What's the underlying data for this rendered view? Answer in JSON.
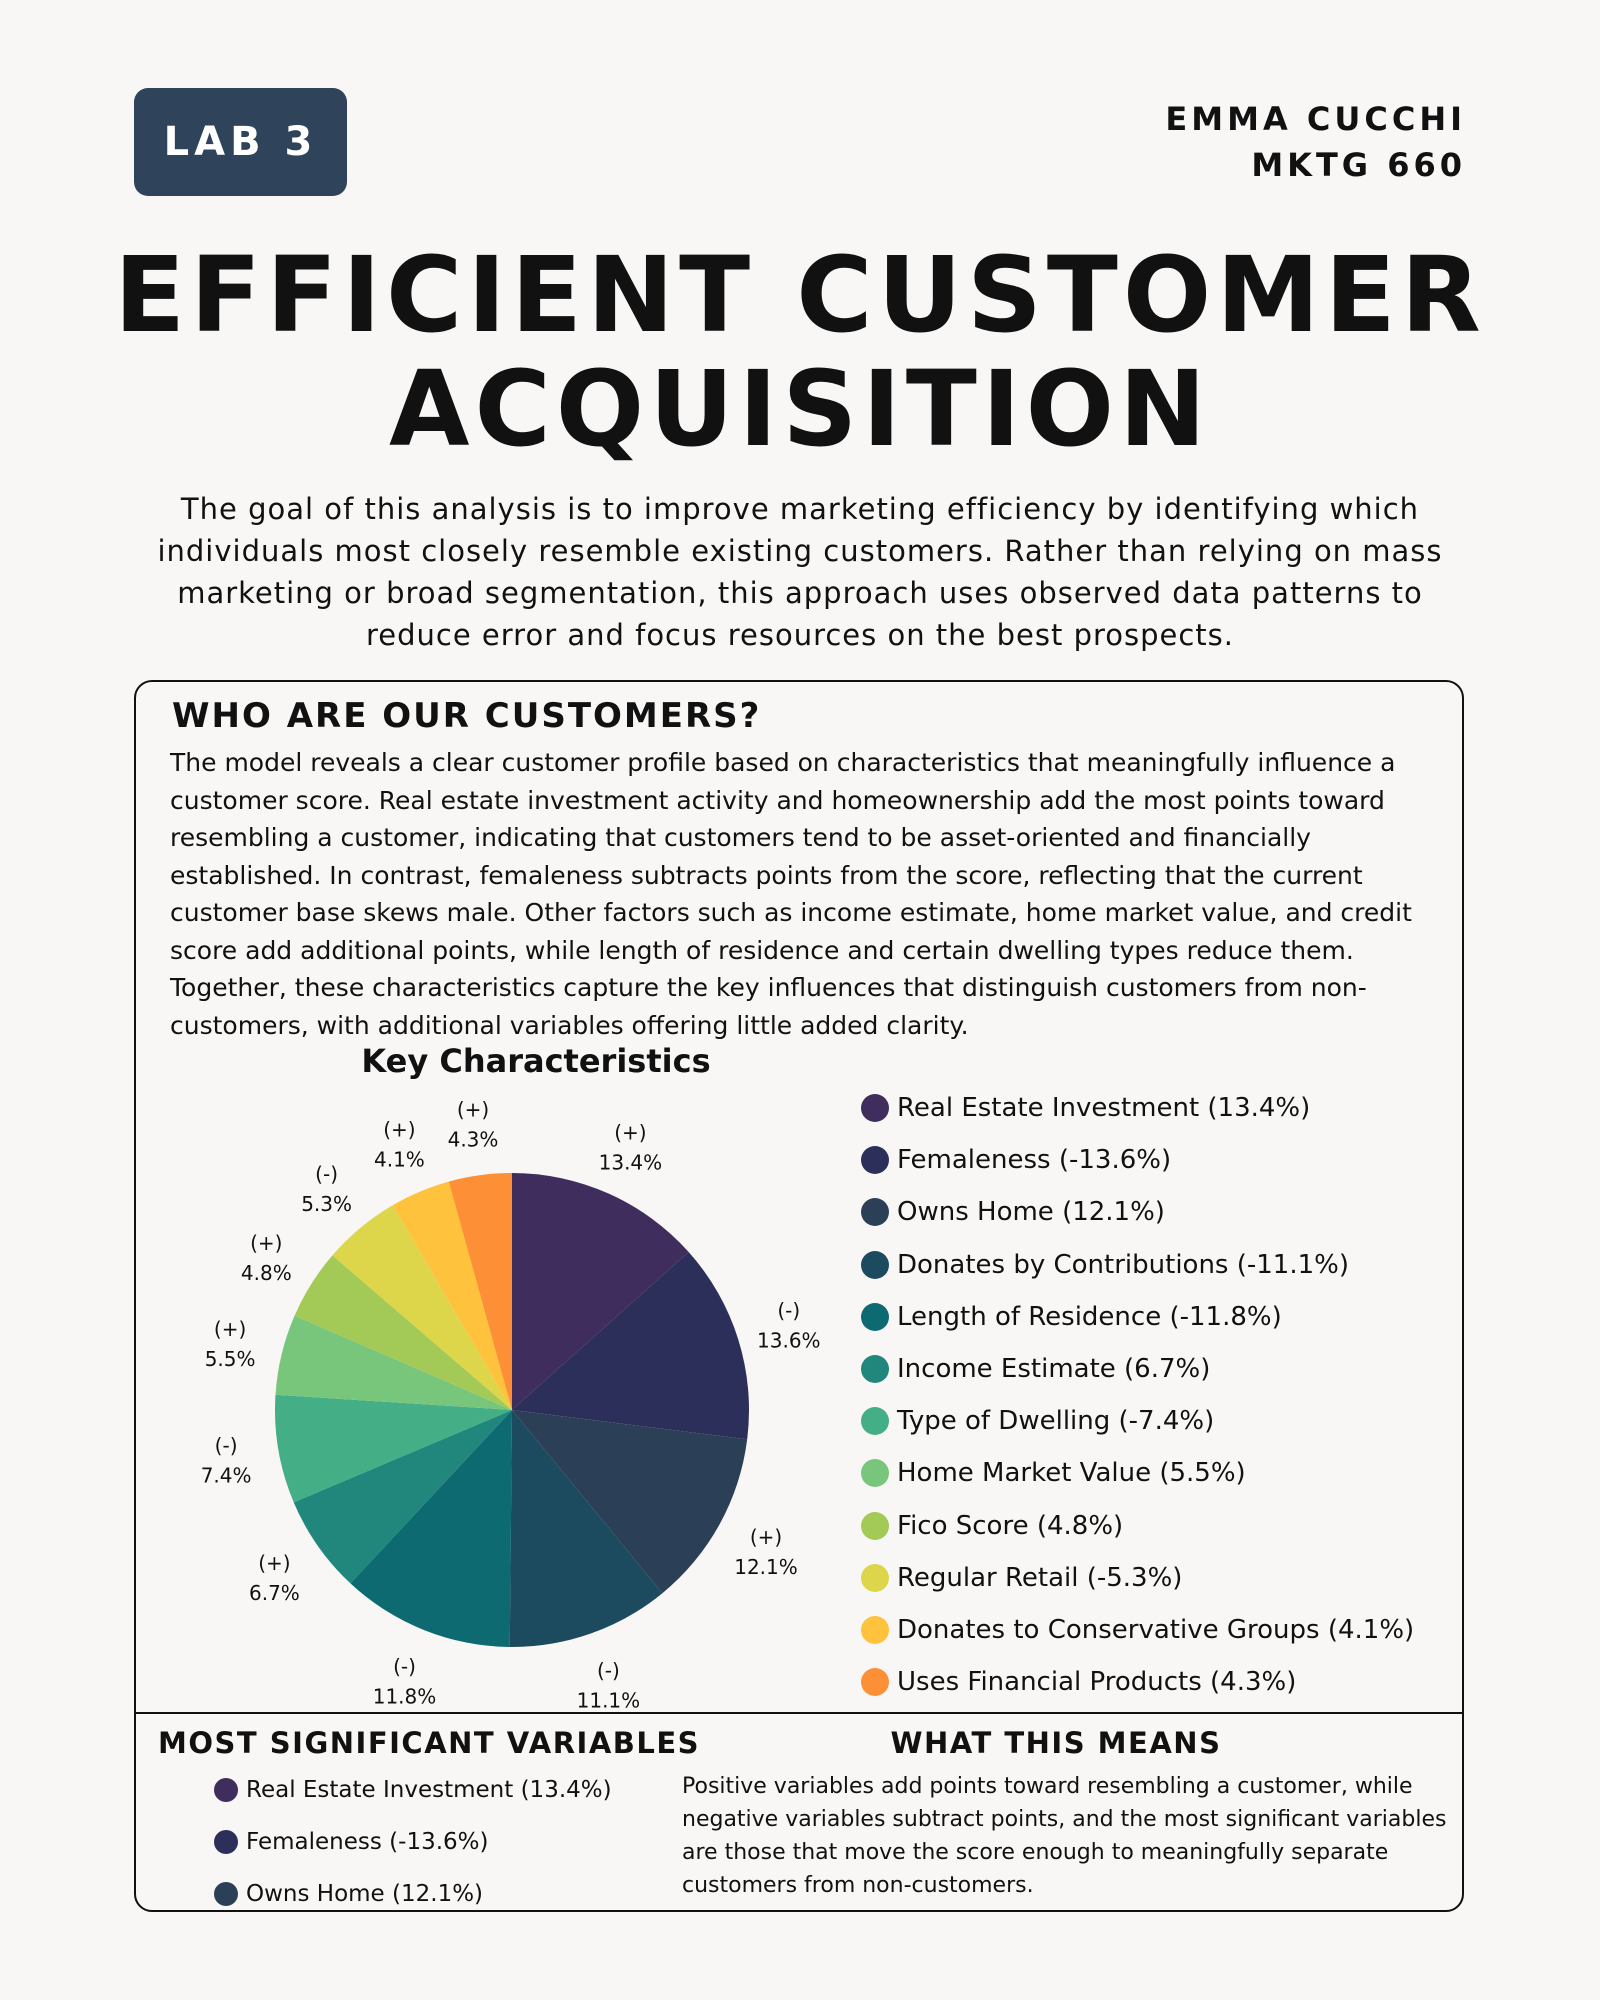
{
  "header": {
    "badge": "LAB 3",
    "author_name": "EMMA CUCCHI",
    "course": "MKTG 660"
  },
  "title": {
    "line1": "EFFICIENT CUSTOMER",
    "line2": "ACQUISITION"
  },
  "intro": "The goal of this analysis is to improve marketing efficiency by identifying which individuals most closely resemble existing customers. Rather than relying on mass marketing or broad segmentation, this approach uses observed data patterns to reduce error and focus resources on the best prospects.",
  "customers_section": {
    "heading": "WHO ARE OUR CUSTOMERS?",
    "body": "The model reveals a clear customer profile based on characteristics that meaningfully influence a customer score. Real estate investment activity and homeownership add the most points toward resembling a customer, indicating that customers tend to be asset-oriented and financially established. In contrast, femaleness subtracts points from the score, reflecting that the current customer base skews male. Other factors such as income estimate, home market value, and credit score add additional points, while length of residence and certain dwelling types reduce them. Together, these characteristics capture the key influences that distinguish customers from non-customers, with additional variables offering little added clarity."
  },
  "chart_data": {
    "type": "pie",
    "title": "Key Characteristics",
    "legend_position": "right",
    "slices": [
      {
        "legend": "Real Estate Investment (13.4%)",
        "value": 13.4,
        "sign": "(+)",
        "pct": "13.4%",
        "color": "#3f2d5d"
      },
      {
        "legend": "Femaleness (-13.6%)",
        "value": 13.6,
        "sign": "(-)",
        "pct": "13.6%",
        "color": "#2c2f59"
      },
      {
        "legend": "Owns Home (12.1%)",
        "value": 12.1,
        "sign": "(+)",
        "pct": "12.1%",
        "color": "#2b4057"
      },
      {
        "legend": "Donates by Contributions (-11.1%)",
        "value": 11.1,
        "sign": "(-)",
        "pct": "11.1%",
        "color": "#1c4a5e"
      },
      {
        "legend": "Length of Residence (-11.8%)",
        "value": 11.8,
        "sign": "(-)",
        "pct": "11.8%",
        "color": "#0c6a70"
      },
      {
        "legend": "Income Estimate (6.7%)",
        "value": 6.7,
        "sign": "(+)",
        "pct": "6.7%",
        "color": "#21877c"
      },
      {
        "legend": "Type of Dwelling (-7.4%)",
        "value": 7.4,
        "sign": "(-)",
        "pct": "7.4%",
        "color": "#44ae86"
      },
      {
        "legend": "Home Market Value (5.5%)",
        "value": 5.5,
        "sign": "(+)",
        "pct": "5.5%",
        "color": "#78c67b"
      },
      {
        "legend": "Fico Score (4.8%)",
        "value": 4.8,
        "sign": "(+)",
        "pct": "4.8%",
        "color": "#a3c956"
      },
      {
        "legend": "Regular Retail (-5.3%)",
        "value": 5.3,
        "sign": "(-)",
        "pct": "5.3%",
        "color": "#ddd54a"
      },
      {
        "legend": "Donates to Conservative Groups (4.1%)",
        "value": 4.1,
        "sign": "(+)",
        "pct": "4.1%",
        "color": "#fec23d"
      },
      {
        "legend": "Uses Financial Products (4.3%)",
        "value": 4.3,
        "sign": "(+)",
        "pct": "4.3%",
        "color": "#fd8f36"
      }
    ]
  },
  "significant": {
    "heading": "MOST SIGNIFICANT VARIABLES",
    "items": [
      {
        "label": "Real Estate Investment (13.4%)",
        "color": "#3f2d5d"
      },
      {
        "label": "Femaleness (-13.6%)",
        "color": "#2c2f59"
      },
      {
        "label": "Owns Home (12.1%)",
        "color": "#2b4057"
      }
    ]
  },
  "means": {
    "heading": "WHAT THIS MEANS",
    "body": "Positive variables add points toward resembling a customer, while negative variables subtract points, and the most significant variables are those that move the score enough to meaningfully separate customers from non-customers."
  }
}
